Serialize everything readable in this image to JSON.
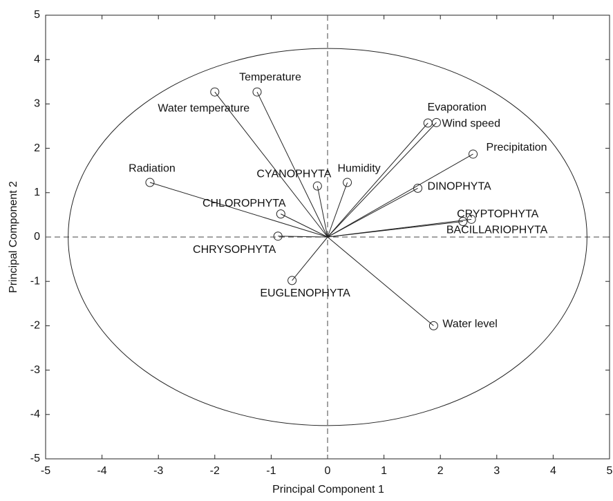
{
  "chart_data": {
    "type": "biplot",
    "xlabel": "Principal Component 1",
    "ylabel": "Principal Component 2",
    "xlim": [
      -5,
      5
    ],
    "ylim": [
      -5,
      5
    ],
    "xticks": [
      -5,
      -4,
      -3,
      -2,
      -1,
      0,
      1,
      2,
      3,
      4,
      5
    ],
    "yticks": [
      -5,
      -4,
      -3,
      -2,
      -1,
      0,
      1,
      2,
      3,
      4,
      5
    ],
    "ellipse_radii": [
      4.6,
      4.25
    ],
    "points": [
      {
        "label": "Temperature",
        "x": -1.25,
        "y": 3.27
      },
      {
        "label": "Water temperature",
        "x": -2.0,
        "y": 3.27
      },
      {
        "label": "Radiation",
        "x": -3.15,
        "y": 1.23
      },
      {
        "label": "CYANOPHYTA",
        "x": -0.18,
        "y": 1.15
      },
      {
        "label": "Humidity",
        "x": 0.35,
        "y": 1.23
      },
      {
        "label": "Evaporation",
        "x": 1.78,
        "y": 2.57
      },
      {
        "label": "Wind speed",
        "x": 1.93,
        "y": 2.58
      },
      {
        "label": "Precipitation",
        "x": 2.58,
        "y": 1.87
      },
      {
        "label": "DINOPHYTA",
        "x": 1.6,
        "y": 1.1
      },
      {
        "label": "CRYPTOPHYTA",
        "x": 2.55,
        "y": 0.4
      },
      {
        "label": "BACILLARIOPHYTA",
        "x": 2.4,
        "y": 0.35
      },
      {
        "label": "CHLOROPHYTA",
        "x": -0.83,
        "y": 0.52
      },
      {
        "label": "CHRYSOPHYTA",
        "x": -0.88,
        "y": 0.02
      },
      {
        "label": "EUGLENOPHYTA",
        "x": -0.63,
        "y": -0.98
      },
      {
        "label": "Water level",
        "x": 1.88,
        "y": -2.0
      }
    ]
  }
}
